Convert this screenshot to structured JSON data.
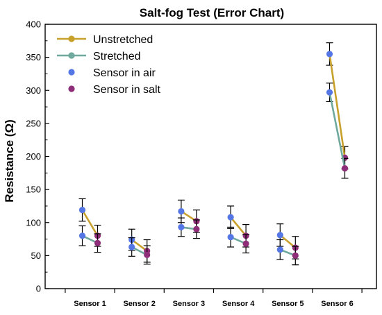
{
  "chart_data": {
    "type": "line",
    "title": "Salt-fog Test (Error Chart)",
    "xlabel": "",
    "ylabel": "Resistance (Ω)",
    "ylim": [
      0,
      400
    ],
    "yticks": [
      0,
      50,
      100,
      150,
      200,
      250,
      300,
      350,
      400
    ],
    "categories": [
      "Sensor 1",
      "Sensor 2",
      "Sensor 3",
      "Sensor 4",
      "Sensor 5",
      "Sensor 6"
    ],
    "states": [
      "Sensor in air",
      "Sensor in salt"
    ],
    "grid": false,
    "legend_position": "top-left",
    "legend": [
      {
        "label": "Unstretched",
        "color": "#c8a02c",
        "kind": "line"
      },
      {
        "label": "Stretched",
        "color": "#6fa89c",
        "kind": "line"
      },
      {
        "label": "Sensor in air",
        "color": "#5577e6",
        "kind": "marker"
      },
      {
        "label": "Sensor in salt",
        "color": "#8e2d78",
        "kind": "marker"
      }
    ],
    "series": [
      {
        "name": "Unstretched",
        "color": "#c8a02c",
        "air": [
          {
            "y": 119,
            "err": 17
          },
          {
            "y": 74,
            "err": 16
          },
          {
            "y": 117,
            "err": 17
          },
          {
            "y": 108,
            "err": 17
          },
          {
            "y": 81,
            "err": 17
          },
          {
            "y": 355,
            "err": 17
          }
        ],
        "salt": [
          {
            "y": 80,
            "err": 16
          },
          {
            "y": 57,
            "err": 17
          },
          {
            "y": 102,
            "err": 17
          },
          {
            "y": 80,
            "err": 17
          },
          {
            "y": 62,
            "err": 17
          },
          {
            "y": 198,
            "err": 17
          }
        ]
      },
      {
        "name": "Stretched",
        "color": "#6fa89c",
        "air": [
          {
            "y": 80,
            "err": 15
          },
          {
            "y": 63,
            "err": 14
          },
          {
            "y": 93,
            "err": 14
          },
          {
            "y": 78,
            "err": 15
          },
          {
            "y": 59,
            "err": 15
          },
          {
            "y": 297,
            "err": 14
          }
        ],
        "salt": [
          {
            "y": 69,
            "err": 14
          },
          {
            "y": 51,
            "err": 14
          },
          {
            "y": 90,
            "err": 14
          },
          {
            "y": 68,
            "err": 14
          },
          {
            "y": 50,
            "err": 14
          },
          {
            "y": 182,
            "err": 15
          }
        ]
      }
    ]
  }
}
